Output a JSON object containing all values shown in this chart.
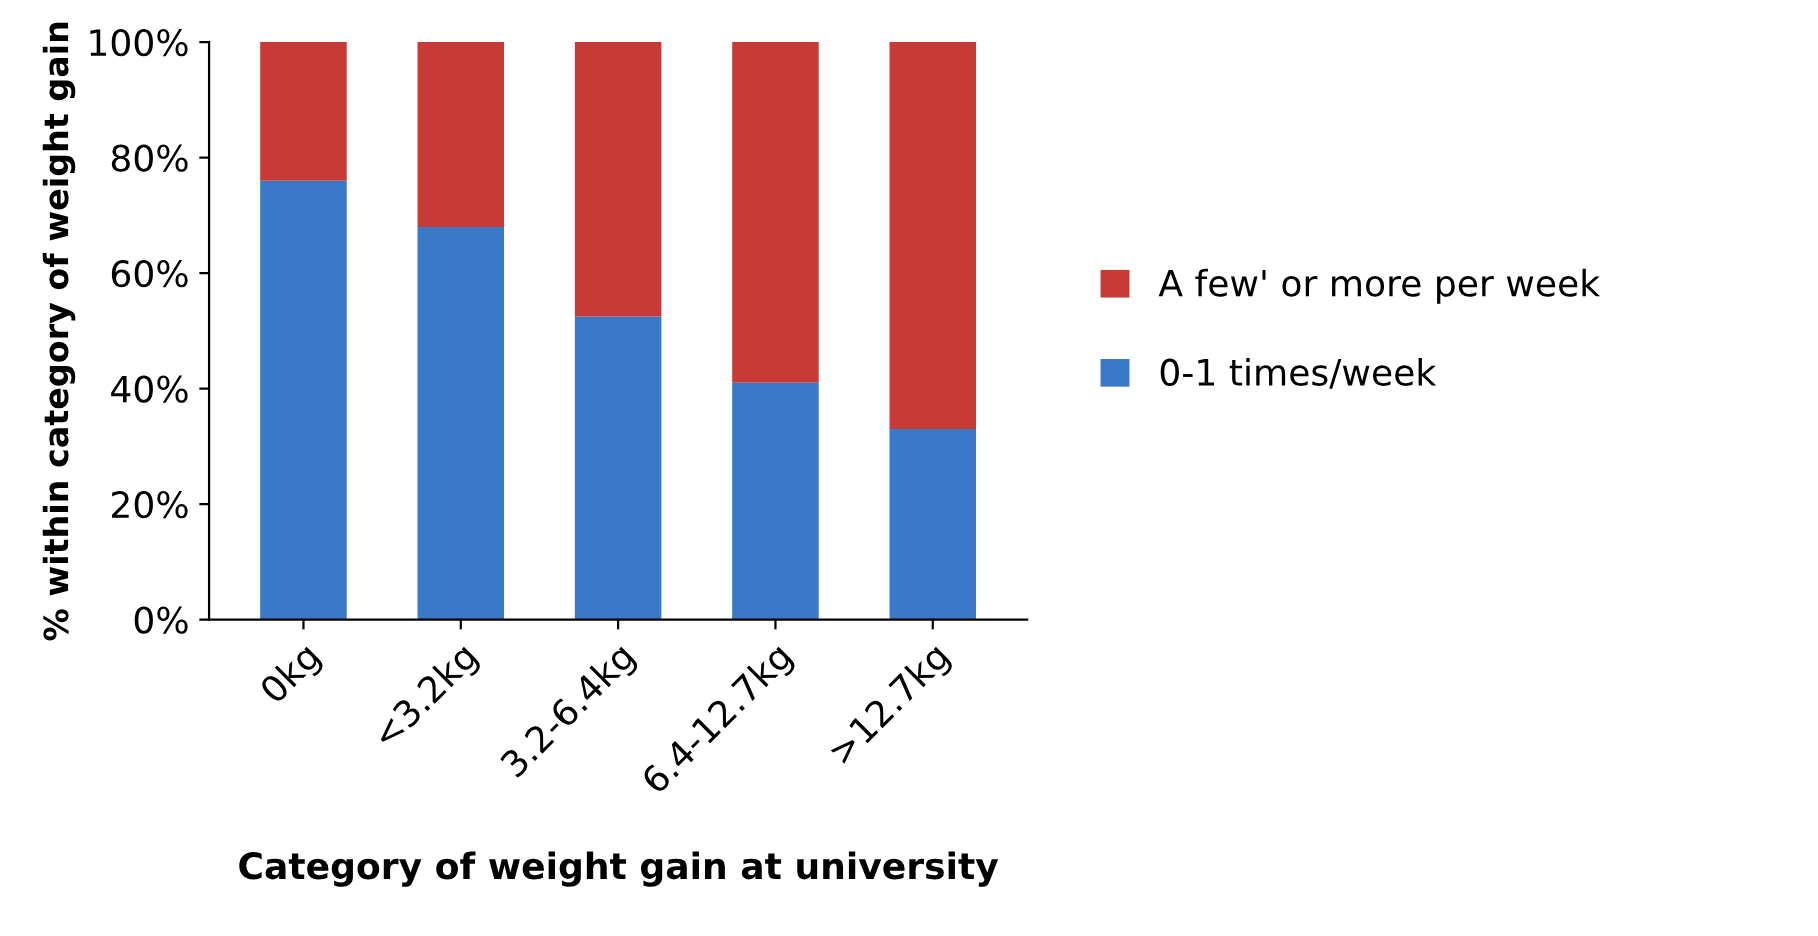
{
  "chart_data": {
    "type": "bar",
    "stacked": true,
    "xlabel": "Category of weight gain at university",
    "ylabel": "% within category of weight gain",
    "categories": [
      "0kg",
      "<3.2kg",
      "3.2-6.4kg",
      "6.4-12.7kg",
      ">12.7kg"
    ],
    "series": [
      {
        "name": "0-1 times/week",
        "color": "#3a78c8",
        "values": [
          76,
          68,
          52.5,
          41,
          33
        ]
      },
      {
        "name": "A few' or more per week",
        "color": "#c83a36",
        "values": [
          24,
          32,
          47.5,
          59,
          67
        ]
      }
    ],
    "ylim": [
      0,
      100
    ],
    "yticks": [
      {
        "value": 0,
        "label": "0%"
      },
      {
        "value": 20,
        "label": "20%"
      },
      {
        "value": 40,
        "label": "40%"
      },
      {
        "value": 60,
        "label": "60%"
      },
      {
        "value": 80,
        "label": "80%"
      },
      {
        "value": 100,
        "label": "100%"
      }
    ],
    "legend": "right",
    "grid": false
  }
}
